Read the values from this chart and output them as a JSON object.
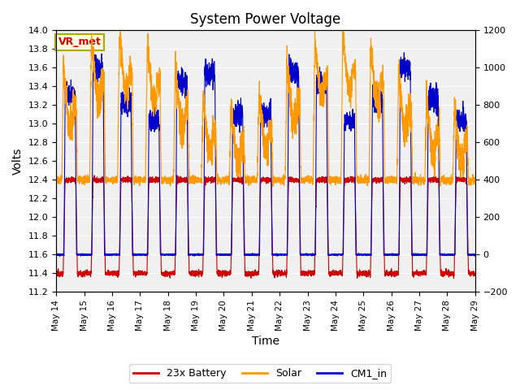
{
  "title": "System Power Voltage",
  "xlabel": "Time",
  "ylabel_left": "Volts",
  "ylim_left": [
    11.2,
    14.0
  ],
  "ylim_right": [
    -200,
    1200
  ],
  "annotation_text": "VR_met",
  "annotation_color": "#cc0000",
  "annotation_bg": "#ffffdd",
  "annotation_border": "#aaaa00",
  "bg_color": "#e8e8e8",
  "plot_bg": "#f0f0f0",
  "legend_entries": [
    "23x Battery",
    "Solar",
    "CM1_in"
  ],
  "legend_colors": [
    "#cc0000",
    "#ff9900",
    "#0000cc"
  ],
  "num_days": 15,
  "x_tick_labels": [
    "May 14",
    "May 15",
    "May 16",
    "May 17",
    "May 18",
    "May 19",
    "May 20",
    "May 21",
    "May 22",
    "May 23",
    "May 24",
    "May 25",
    "May 26",
    "May 27",
    "May 28",
    "May 29"
  ],
  "yticks_left": [
    11.2,
    11.4,
    11.6,
    11.8,
    12.0,
    12.2,
    12.4,
    12.6,
    12.8,
    13.0,
    13.2,
    13.4,
    13.6,
    13.8,
    14.0
  ],
  "yticks_right": [
    -200,
    0,
    200,
    400,
    600,
    800,
    1000,
    1200
  ]
}
